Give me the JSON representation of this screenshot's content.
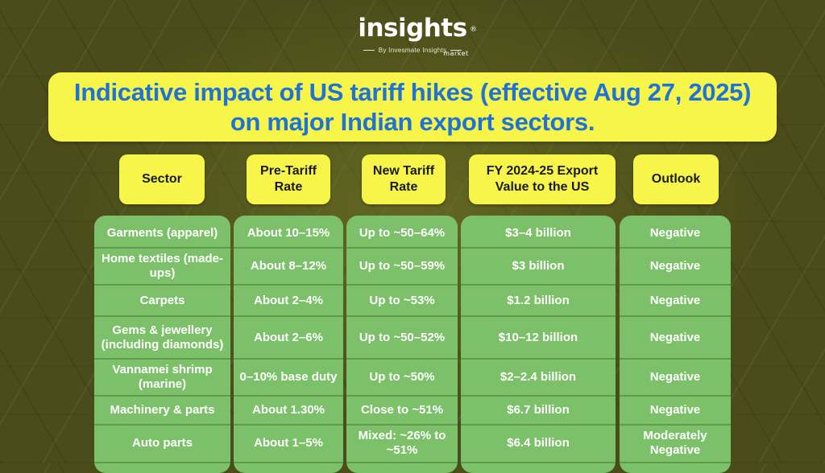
{
  "logo": {
    "name": "insights",
    "registered": "®",
    "sub": "market",
    "by": "By Invesmate Insights"
  },
  "title": "Indicative impact of US tariff hikes (effective Aug 27, 2025) on major Indian export sectors.",
  "table": {
    "headers": [
      "Sector",
      "Pre-Tariff Rate",
      "New Tariff Rate",
      "FY 2024-25 Export Value to the US",
      "Outlook"
    ],
    "rows": [
      [
        "Garments (apparel)",
        "About 10–15%",
        "Up to ~50–64%",
        "$3–4 billion",
        "Negative"
      ],
      [
        "Home textiles (made-ups)",
        "About 8–12%",
        "Up to ~50–59%",
        "$3 billion",
        "Negative"
      ],
      [
        "Carpets",
        "About 2–4%",
        "Up to ~53%",
        "$1.2 billion",
        "Negative"
      ],
      [
        "Gems & jewellery (including diamonds)",
        "About 2–6%",
        "Up to ~50–52%",
        "$10–12 billion",
        "Negative"
      ],
      [
        "Vannamei shrimp (marine)",
        "0–10% base duty",
        "Up to ~50%",
        "$2–2.4 billion",
        "Negative"
      ],
      [
        "Machinery & parts",
        "About 1.30%",
        "Close to ~51%",
        "$6.7 billion",
        "Negative"
      ],
      [
        "Auto parts",
        "About 1–5%",
        "Mixed: ~26% to ~51%",
        "$6.4 billion",
        "Moderately Negative"
      ]
    ]
  }
}
